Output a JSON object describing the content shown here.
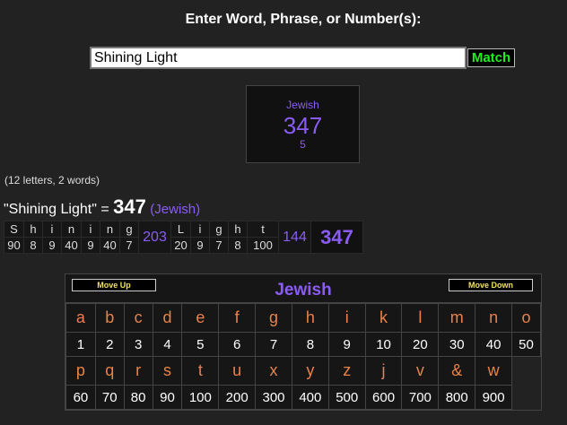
{
  "header": {
    "title": "Enter Word, Phrase, or Number(s):"
  },
  "search": {
    "value": "Shining Light",
    "button": "Match"
  },
  "result_box": {
    "cipher": "Jewish",
    "value": "347",
    "words": "5"
  },
  "summary": {
    "count_text": "(12 letters, 2 words)",
    "phrase": "\"Shining Light\"",
    "equals": "=",
    "value": "347",
    "cipher": "(Jewish)"
  },
  "breakdown": {
    "words": [
      {
        "letters": [
          "S",
          "h",
          "i",
          "n",
          "i",
          "n",
          "g"
        ],
        "values": [
          "90",
          "8",
          "9",
          "40",
          "9",
          "40",
          "7"
        ],
        "subtotal": "203"
      },
      {
        "letters": [
          "L",
          "i",
          "g",
          "h",
          "t"
        ],
        "values": [
          "20",
          "9",
          "7",
          "8",
          "100"
        ],
        "subtotal": "144"
      }
    ],
    "total": "347"
  },
  "cipher_table": {
    "move_up": "Move Up",
    "move_down": "Move Down",
    "name": "Jewish",
    "row1_letters": [
      "a",
      "b",
      "c",
      "d",
      "e",
      "f",
      "g",
      "h",
      "i",
      "k",
      "l",
      "m",
      "n",
      "o"
    ],
    "row1_values": [
      "1",
      "2",
      "3",
      "4",
      "5",
      "6",
      "7",
      "8",
      "9",
      "10",
      "20",
      "30",
      "40",
      "50"
    ],
    "row2_letters": [
      "p",
      "q",
      "r",
      "s",
      "t",
      "u",
      "x",
      "y",
      "z",
      "j",
      "v",
      "&",
      "w"
    ],
    "row2_values": [
      "60",
      "70",
      "80",
      "90",
      "100",
      "200",
      "300",
      "400",
      "500",
      "600",
      "700",
      "800",
      "900"
    ]
  },
  "colors": {
    "accent": "#8a5cf5",
    "letter": "#e8824a",
    "match": "#22ee22",
    "button_text": "#f0e060"
  }
}
